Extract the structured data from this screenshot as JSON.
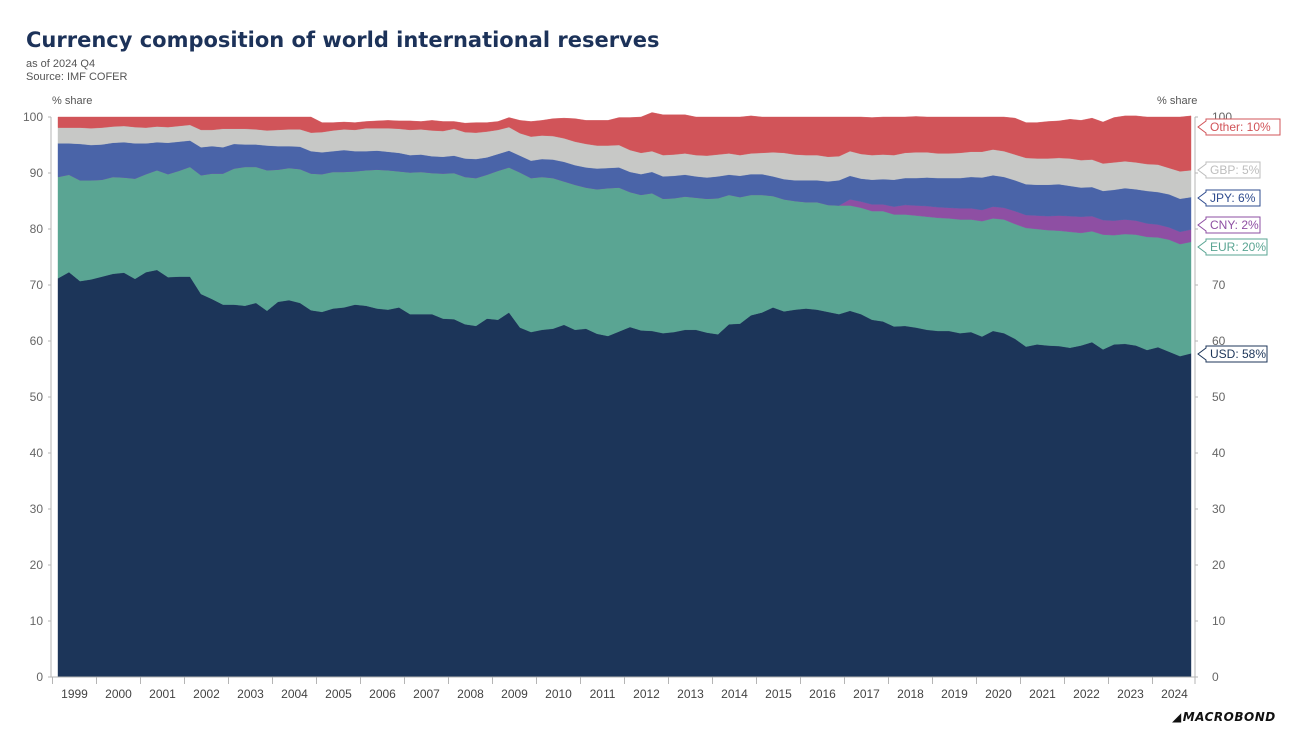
{
  "title": "Currency composition of world international reserves",
  "subtitle": "as of 2024 Q4",
  "source": "Source: IMF COFER",
  "unit_left": "% share",
  "unit_right": "% share",
  "logo": "MACROBOND",
  "chart_data": {
    "type": "area",
    "stacked": true,
    "x_start": "1999 Q1",
    "x_end": "2024 Q4",
    "ylim": [
      0,
      100
    ],
    "yticks": [
      0,
      10,
      20,
      30,
      40,
      50,
      60,
      70,
      80,
      90,
      100
    ],
    "xtick_labels": [
      "1999",
      "2000",
      "2001",
      "2002",
      "2003",
      "2004",
      "2005",
      "2006",
      "2007",
      "2008",
      "2009",
      "2010",
      "2011",
      "2012",
      "2013",
      "2014",
      "2015",
      "2016",
      "2017",
      "2018",
      "2019",
      "2020",
      "2021",
      "2022",
      "2023",
      "2024"
    ],
    "grid": false,
    "legend": "right-edge labels",
    "series": [
      {
        "name": "USD",
        "end_label": "USD: 58%",
        "color": "#1c3559",
        "values": [
          71.2,
          72.3,
          70.7,
          71.0,
          71.5,
          72.0,
          72.2,
          71.1,
          72.3,
          72.7,
          71.4,
          71.5,
          71.5,
          68.4,
          67.5,
          66.5,
          66.5,
          66.3,
          66.8,
          65.4,
          67.0,
          67.3,
          66.8,
          65.5,
          65.2,
          65.8,
          66.0,
          66.5,
          66.3,
          65.8,
          65.6,
          66.0,
          64.8,
          64.8,
          64.8,
          64.0,
          63.9,
          63.0,
          62.7,
          64.0,
          63.8,
          65.1,
          62.4,
          61.6,
          62.0,
          62.2,
          62.9,
          62.0,
          62.2,
          61.3,
          60.9,
          61.7,
          62.5,
          61.9,
          61.8,
          61.4,
          61.6,
          62.0,
          62.0,
          61.5,
          61.2,
          63.0,
          63.1,
          64.6,
          65.1,
          66.0,
          65.3,
          65.6,
          65.8,
          65.6,
          65.2,
          64.8,
          65.4,
          64.8,
          63.8,
          63.5,
          62.6,
          62.7,
          62.4,
          62.0,
          61.8,
          61.8,
          61.4,
          61.6,
          60.8,
          61.8,
          61.4,
          60.4,
          59.0,
          59.4,
          59.2,
          59.1,
          58.8,
          59.2,
          59.8,
          58.5,
          59.4,
          59.5,
          59.2,
          58.4,
          58.9,
          58.1,
          57.3,
          57.8
        ]
      },
      {
        "name": "EUR",
        "end_label": "EUR: 20%",
        "color": "#5aa593",
        "values": [
          18.1,
          17.4,
          18.0,
          17.7,
          17.3,
          17.3,
          17.0,
          17.9,
          17.5,
          17.8,
          18.4,
          18.9,
          19.6,
          21.2,
          22.4,
          23.4,
          24.3,
          24.8,
          24.3,
          25.1,
          23.6,
          23.6,
          23.9,
          24.4,
          24.6,
          24.4,
          24.2,
          23.8,
          24.2,
          24.8,
          24.9,
          24.3,
          25.3,
          25.4,
          25.2,
          25.9,
          26.1,
          26.3,
          26.4,
          25.7,
          26.6,
          25.9,
          27.7,
          27.5,
          27.3,
          26.9,
          25.6,
          25.9,
          25.2,
          25.8,
          26.4,
          25.7,
          24.1,
          24.2,
          24.6,
          24.0,
          23.9,
          23.8,
          23.6,
          23.9,
          24.3,
          23.1,
          22.6,
          21.5,
          21.0,
          19.9,
          20.0,
          19.4,
          19.0,
          19.2,
          19.1,
          19.4,
          18.8,
          19.0,
          19.4,
          19.7,
          20.0,
          19.9,
          20.0,
          20.2,
          20.2,
          20.1,
          20.3,
          20.1,
          20.6,
          20.1,
          20.3,
          20.5,
          21.2,
          20.6,
          20.6,
          20.6,
          20.7,
          20.1,
          19.8,
          20.5,
          19.5,
          19.6,
          19.8,
          20.2,
          19.6,
          20.0,
          20.0,
          19.9
        ]
      },
      {
        "name": "CNY",
        "end_label": "CNY: 2%",
        "color": "#8e4fa3",
        "values": [
          0,
          0,
          0,
          0,
          0,
          0,
          0,
          0,
          0,
          0,
          0,
          0,
          0,
          0,
          0,
          0,
          0,
          0,
          0,
          0,
          0,
          0,
          0,
          0,
          0,
          0,
          0,
          0,
          0,
          0,
          0,
          0,
          0,
          0,
          0,
          0,
          0,
          0,
          0,
          0,
          0,
          0,
          0,
          0,
          0,
          0,
          0,
          0,
          0,
          0,
          0,
          0,
          0,
          0,
          0,
          0,
          0,
          0,
          0,
          0,
          0,
          0,
          0,
          0,
          0,
          0,
          0,
          0,
          0,
          0,
          0,
          0,
          1.1,
          1.1,
          1.2,
          1.2,
          1.4,
          1.7,
          1.8,
          1.9,
          1.9,
          1.9,
          2.0,
          2.0,
          2.0,
          2.1,
          2.1,
          2.3,
          2.3,
          2.4,
          2.5,
          2.7,
          2.8,
          2.9,
          2.7,
          2.6,
          2.6,
          2.6,
          2.5,
          2.4,
          2.3,
          2.2,
          2.2,
          2.2
        ]
      },
      {
        "name": "JPY",
        "end_label": "JPY: 6%",
        "color": "#4a64a8",
        "values": [
          6.0,
          5.6,
          6.5,
          6.3,
          6.3,
          6.1,
          6.3,
          6.3,
          5.5,
          5.0,
          5.6,
          5.2,
          4.7,
          5.0,
          4.9,
          4.7,
          4.4,
          4.0,
          4.0,
          4.4,
          4.2,
          3.9,
          4.0,
          4.0,
          3.9,
          3.7,
          3.9,
          3.6,
          3.4,
          3.4,
          3.3,
          3.3,
          3.1,
          3.1,
          3.0,
          3.0,
          3.1,
          3.3,
          3.4,
          3.1,
          3.0,
          3.0,
          3.0,
          3.1,
          3.2,
          3.3,
          3.5,
          3.5,
          3.6,
          3.7,
          3.6,
          3.6,
          3.6,
          3.7,
          3.8,
          4.0,
          4.0,
          3.9,
          3.8,
          3.8,
          3.9,
          3.6,
          3.8,
          3.7,
          3.7,
          3.5,
          3.6,
          3.7,
          3.9,
          3.9,
          4.2,
          4.5,
          4.2,
          4.1,
          4.4,
          4.5,
          4.8,
          4.8,
          4.9,
          5.1,
          5.2,
          5.3,
          5.4,
          5.6,
          5.8,
          5.6,
          5.5,
          5.5,
          5.5,
          5.5,
          5.6,
          5.6,
          5.4,
          5.2,
          5.2,
          5.2,
          5.5,
          5.6,
          5.6,
          5.8,
          5.8,
          5.9,
          5.9,
          5.8
        ]
      },
      {
        "name": "GBP",
        "end_label": "GBP: 5%",
        "color": "#c7c8c6",
        "values": [
          2.8,
          2.8,
          2.9,
          3.0,
          3.0,
          2.9,
          2.9,
          2.9,
          2.8,
          2.8,
          2.8,
          2.8,
          2.8,
          3.1,
          2.9,
          3.3,
          2.7,
          2.8,
          2.7,
          2.7,
          2.9,
          3.0,
          3.1,
          3.3,
          3.6,
          3.7,
          3.7,
          3.8,
          4.1,
          4.0,
          4.2,
          4.3,
          4.5,
          4.5,
          4.6,
          4.6,
          4.8,
          4.7,
          4.7,
          4.6,
          4.3,
          4.2,
          4.0,
          4.3,
          4.2,
          4.2,
          4.2,
          4.2,
          4.2,
          4.1,
          4.0,
          4.0,
          3.9,
          3.8,
          3.7,
          3.8,
          3.8,
          3.8,
          3.8,
          3.9,
          3.9,
          3.8,
          3.7,
          3.7,
          3.8,
          4.3,
          4.7,
          4.6,
          4.5,
          4.5,
          4.4,
          4.3,
          4.4,
          4.4,
          4.4,
          4.4,
          4.4,
          4.5,
          4.6,
          4.5,
          4.4,
          4.4,
          4.5,
          4.5,
          4.6,
          4.6,
          4.6,
          4.6,
          4.7,
          4.7,
          4.7,
          4.7,
          4.9,
          4.9,
          4.9,
          4.9,
          4.9,
          4.8,
          4.8,
          4.8,
          4.9,
          4.7,
          4.9,
          4.8
        ]
      },
      {
        "name": "Other",
        "end_label": "Other: 10%",
        "color": "#d15459",
        "values": [
          1.9,
          1.9,
          1.9,
          2.0,
          1.9,
          1.7,
          1.6,
          1.8,
          1.9,
          1.7,
          1.8,
          1.6,
          1.4,
          2.3,
          2.3,
          2.1,
          2.1,
          2.1,
          2.2,
          2.4,
          2.3,
          2.2,
          2.2,
          2.8,
          1.7,
          1.4,
          1.3,
          1.3,
          1.2,
          1.3,
          1.4,
          1.4,
          1.6,
          1.4,
          1.8,
          1.7,
          1.3,
          1.6,
          1.8,
          1.6,
          1.5,
          1.7,
          2.3,
          2.7,
          2.7,
          3.1,
          3.6,
          4.1,
          4.2,
          4.5,
          4.5,
          4.9,
          5.8,
          6.4,
          6.9,
          7.2,
          7.1,
          6.9,
          6.8,
          6.9,
          6.7,
          6.5,
          6.8,
          6.7,
          6.4,
          6.3,
          6.4,
          6.7,
          6.8,
          6.8,
          7.1,
          7.0,
          6.1,
          6.6,
          6.7,
          6.7,
          6.8,
          6.4,
          6.4,
          6.3,
          6.5,
          6.5,
          6.4,
          6.2,
          6.2,
          5.8,
          6.1,
          6.5,
          6.3,
          6.4,
          6.6,
          6.6,
          7.0,
          7.1,
          7.4,
          7.4,
          8.0,
          8.1,
          8.3,
          8.4,
          8.5,
          9.1,
          9.7,
          9.7
        ]
      }
    ]
  }
}
